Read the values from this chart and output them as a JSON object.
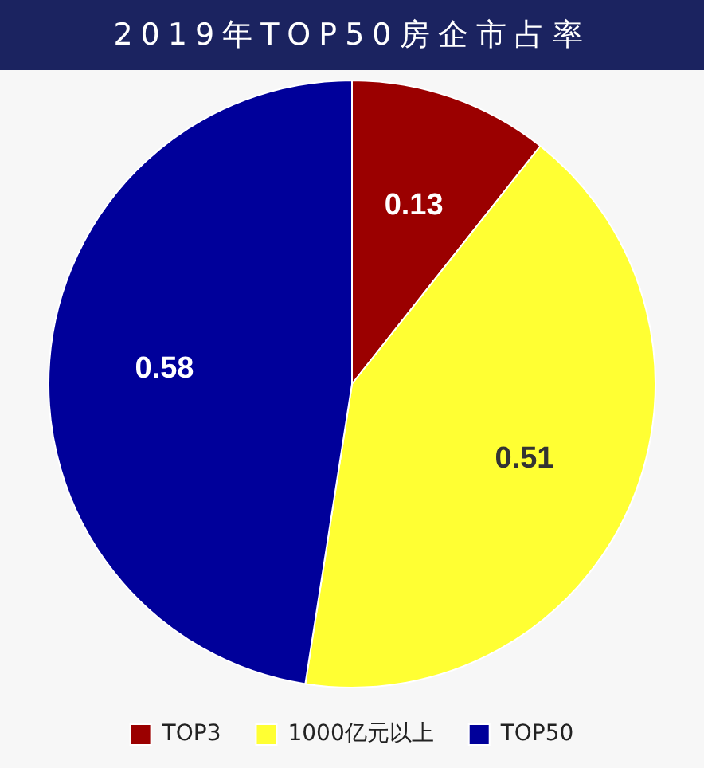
{
  "chart_data": {
    "type": "pie",
    "title": "2019年TOP50房企市占率",
    "categories": [
      "TOP3",
      "1000亿元以上",
      "TOP50"
    ],
    "values": [
      0.13,
      0.51,
      0.58
    ],
    "colors": [
      "#9b0000",
      "#ffff33",
      "#00009a"
    ],
    "data_labels": true,
    "legend": "bottom"
  }
}
